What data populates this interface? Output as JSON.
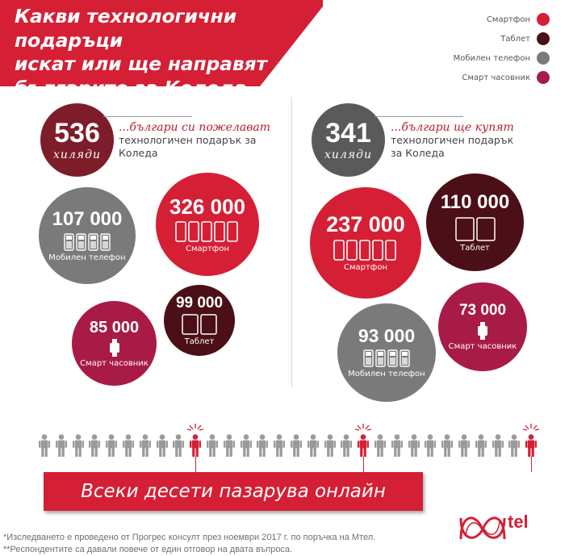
{
  "title": {
    "line1": "Какви технологични подаръци",
    "line2": "искат или ще направят",
    "line3": "българите за Коледа"
  },
  "colors": {
    "smartphone": "#d51f35",
    "tablet": "#4b0f17",
    "mobile": "#7a7a7a",
    "smartwatch": "#a81b46",
    "accent": "#b81d2e"
  },
  "legend": {
    "items": [
      {
        "label": "Смартфон",
        "color": "#d51f35"
      },
      {
        "label": "Таблет",
        "color": "#4b0f17"
      },
      {
        "label": "Мобилен телефон",
        "color": "#7a7a7a"
      },
      {
        "label": "Смарт часовник",
        "color": "#a81b46"
      }
    ]
  },
  "left": {
    "number": "536",
    "unit": "хиляди",
    "text_accent": "...българи си пожелават",
    "text_rest1": "технологичен подарък за",
    "text_rest2": "Коледа",
    "mobile": {
      "value": "107 000",
      "label": "Мобилен телефон"
    },
    "smartphone": {
      "value": "326 000",
      "label": "Смартфон"
    },
    "smartwatch": {
      "value": "85 000",
      "label": "Смарт часовник"
    },
    "tablet": {
      "value": "99 000",
      "label": "Таблет"
    }
  },
  "right": {
    "number": "341",
    "unit": "хиляди",
    "text_accent": "...българи ще купят",
    "text_rest1": "технологичен подарък",
    "text_rest2": "за Коледа",
    "smartphone": {
      "value": "237 000",
      "label": "Смартфон"
    },
    "tablet": {
      "value": "110 000",
      "label": "Таблет"
    },
    "smartwatch": {
      "value": "73 000",
      "label": "Смарт часовник"
    },
    "mobile": {
      "value": "93 000",
      "label": "Мобилен телефон"
    }
  },
  "people": {
    "total": 30,
    "highlighted": [
      10,
      20,
      30
    ]
  },
  "banner": {
    "text": "Всеки десети пазарува онлайн"
  },
  "footnotes": {
    "line1": "*Изследването е проведено от Прогрес консулт през ноември 2017 г. по поръчка на Мтел.",
    "line2": "**Респондентите са давали повече от един отговор на двата въпроса."
  },
  "brand": {
    "name": "tel"
  }
}
